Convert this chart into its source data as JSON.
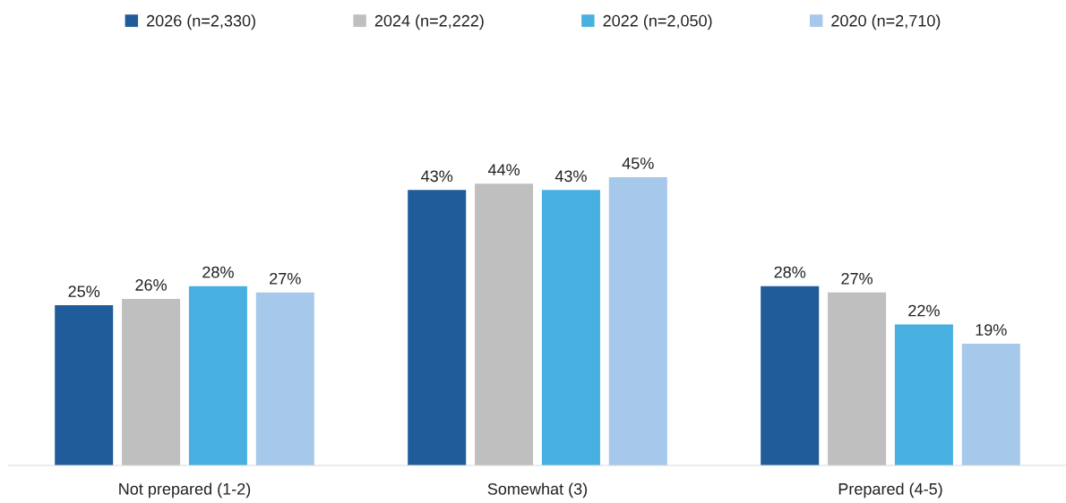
{
  "chart_data": {
    "type": "bar",
    "categories": [
      "Not prepared (1-2)",
      "Somewhat (3)",
      "Prepared (4-5)"
    ],
    "series": [
      {
        "name": "2026 (n=2,330)",
        "color": "#1f5c99",
        "values": [
          25,
          43,
          28
        ],
        "value_labels": [
          "25%",
          "43%",
          "28%"
        ]
      },
      {
        "name": "2024 (n=2,222)",
        "color": "#bfbfbf",
        "values": [
          26,
          44,
          27
        ],
        "value_labels": [
          "26%",
          "44%",
          "27%"
        ]
      },
      {
        "name": "2022 (n=2,050)",
        "color": "#47b0e0",
        "values": [
          28,
          43,
          22
        ],
        "value_labels": [
          "28%",
          "43%",
          "22%"
        ]
      },
      {
        "name": "2020 (n=2,710)",
        "color": "#a6c8ea",
        "values": [
          27,
          45,
          19
        ],
        "value_labels": [
          "27%",
          "45%",
          "19%"
        ]
      }
    ],
    "legend": "top",
    "grid": false,
    "tick_labels": "x"
  }
}
